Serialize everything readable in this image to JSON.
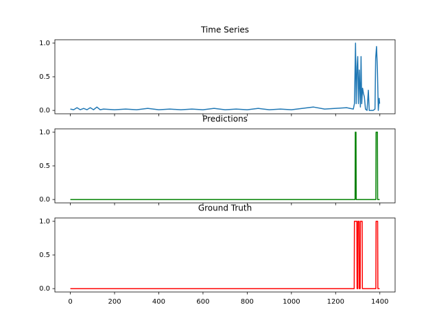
{
  "chart_data": [
    {
      "type": "line",
      "title": "Time Series",
      "color": "#1f77b4",
      "x": [
        0,
        15,
        30,
        45,
        60,
        75,
        90,
        105,
        120,
        135,
        150,
        200,
        250,
        300,
        350,
        400,
        450,
        500,
        550,
        600,
        650,
        700,
        750,
        800,
        850,
        900,
        950,
        1000,
        1050,
        1100,
        1150,
        1200,
        1250,
        1280,
        1285,
        1290,
        1293,
        1297,
        1300,
        1303,
        1307,
        1312,
        1315,
        1318,
        1322,
        1326,
        1330,
        1335,
        1342,
        1348,
        1352,
        1360,
        1370,
        1378,
        1381,
        1385,
        1389,
        1393,
        1397,
        1399
      ],
      "values": [
        0.02,
        0.01,
        0.04,
        0.01,
        0.03,
        0.01,
        0.04,
        0.01,
        0.05,
        0.01,
        0.02,
        0.01,
        0.02,
        0.01,
        0.03,
        0.01,
        0.02,
        0.01,
        0.02,
        0.01,
        0.03,
        0.01,
        0.02,
        0.01,
        0.03,
        0.01,
        0.02,
        0.01,
        0.03,
        0.05,
        0.02,
        0.03,
        0.04,
        0.02,
        0.1,
        1.0,
        0.1,
        0.65,
        0.8,
        0.1,
        0.6,
        0.05,
        0.8,
        0.1,
        0.33,
        0.25,
        0.2,
        0.02,
        0.0,
        0.3,
        0.0,
        0.0,
        0.0,
        0.02,
        0.77,
        0.95,
        0.6,
        0.0,
        0.18,
        0.1
      ],
      "xlim": [
        -70,
        1469
      ],
      "ylim": [
        -0.05,
        1.05
      ],
      "yticks": [
        {
          "value": 0,
          "label": "0.0"
        },
        0.5,
        {
          "value": 1,
          "label": "1.0"
        }
      ]
    },
    {
      "type": "line",
      "title": "Predictions",
      "color": "#008000",
      "x": [
        0,
        1288,
        1289,
        1292,
        1293,
        1382,
        1383,
        1389,
        1390,
        1399
      ],
      "values": [
        0,
        0,
        1,
        1,
        0,
        0,
        1,
        1,
        0,
        0
      ],
      "xlim": [
        -70,
        1469
      ],
      "ylim": [
        -0.05,
        1.05
      ],
      "yticks": [
        {
          "value": 0,
          "label": "0.0"
        },
        0.5,
        {
          "value": 1,
          "label": "1.0"
        }
      ]
    },
    {
      "type": "line",
      "title": "Ground Truth",
      "color": "#ff0000",
      "x": [
        0,
        1284,
        1285,
        1296,
        1297,
        1300,
        1301,
        1306,
        1307,
        1311,
        1312,
        1320,
        1321,
        1382,
        1383,
        1390,
        1391,
        1399
      ],
      "values": [
        0,
        0,
        1,
        1,
        0,
        0,
        1,
        1,
        0,
        0,
        1,
        1,
        0,
        0,
        1,
        1,
        0,
        0
      ],
      "xlim": [
        -70,
        1469
      ],
      "ylim": [
        -0.05,
        1.05
      ],
      "xticks": [
        0,
        200,
        400,
        600,
        800,
        1000,
        1200,
        1400
      ],
      "yticks": [
        {
          "value": 0,
          "label": "0.0"
        },
        0.5,
        {
          "value": 1,
          "label": "1.0"
        }
      ]
    }
  ]
}
